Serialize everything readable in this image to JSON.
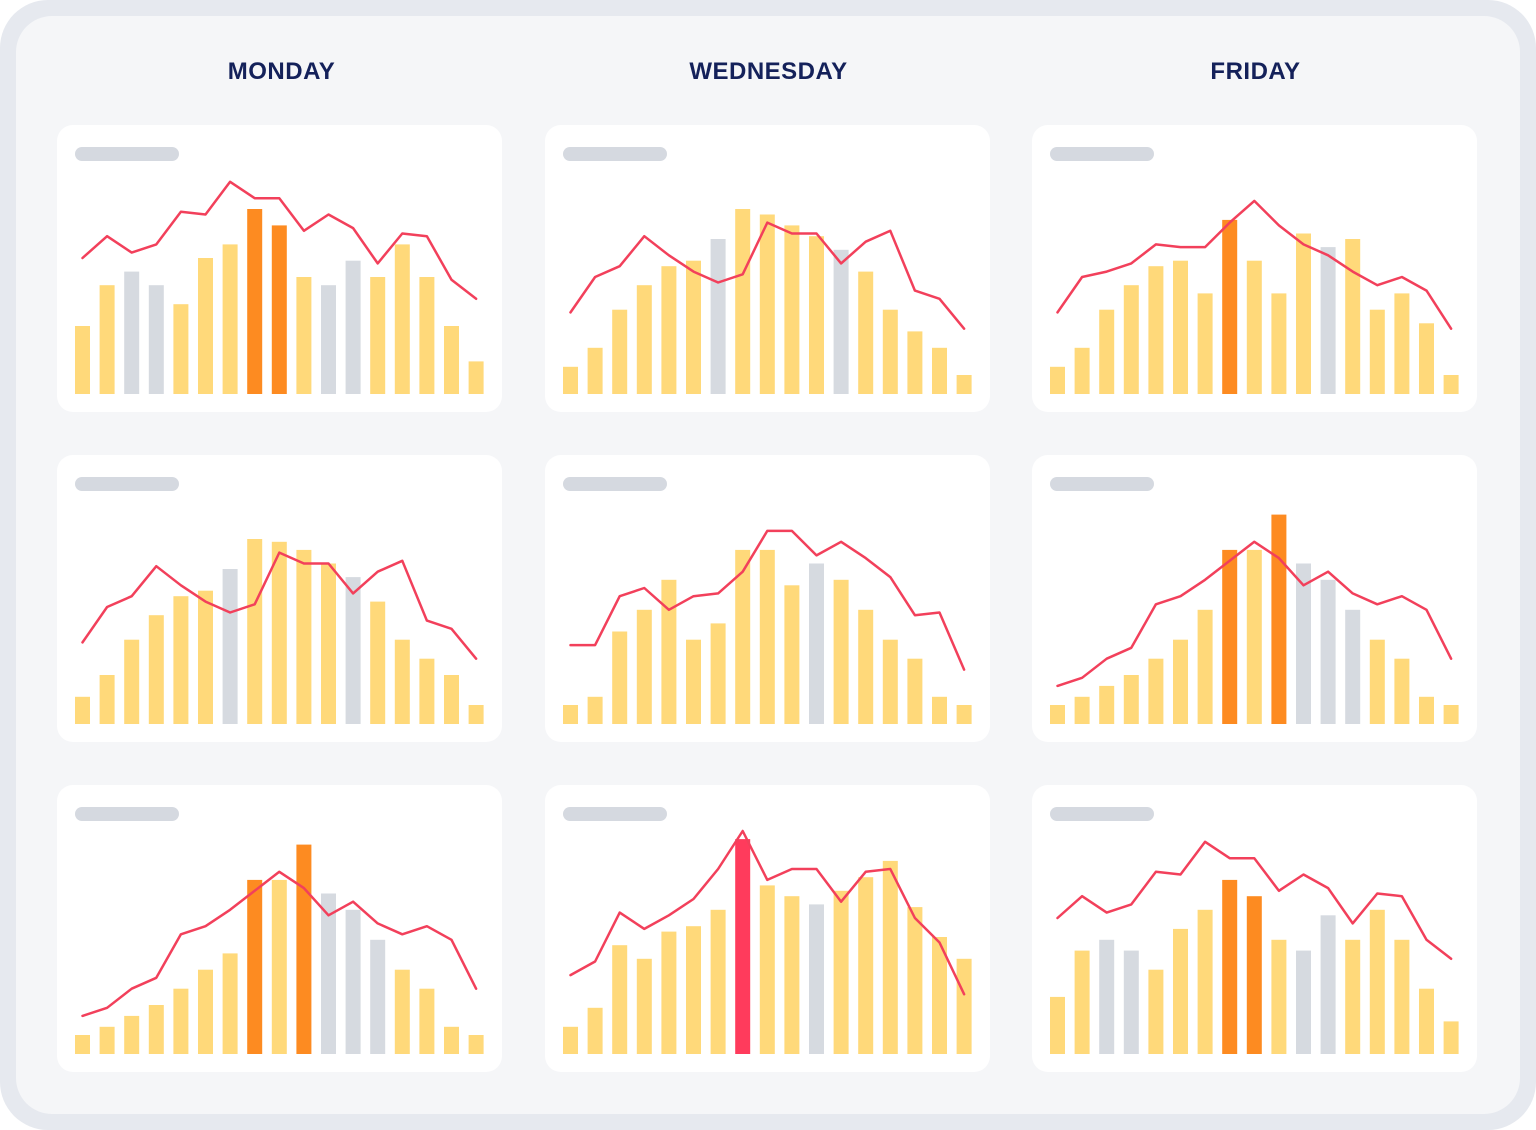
{
  "days": [
    "MONDAY",
    "WEDNESDAY",
    "FRIDAY"
  ],
  "colors": {
    "normal": "#ffd97a",
    "inactive": "#d6dae0",
    "peak": "#fd8b21",
    "alert": "#ff3b5c",
    "line": "#f2405b"
  },
  "chart_data": [
    {
      "type": "bar",
      "day": "MONDAY",
      "row": 1,
      "values": [
        25,
        40,
        45,
        40,
        33,
        50,
        55,
        68,
        62,
        43,
        40,
        49,
        43,
        55,
        43,
        25,
        12
      ],
      "states": [
        "n",
        "n",
        "g",
        "g",
        "n",
        "n",
        "n",
        "p",
        "p",
        "n",
        "g",
        "g",
        "n",
        "n",
        "n",
        "n",
        "n"
      ],
      "line": [
        50,
        58,
        52,
        55,
        67,
        66,
        78,
        72,
        72,
        60,
        66,
        61,
        48,
        59,
        58,
        42,
        35
      ],
      "ylim": [
        0,
        100
      ]
    },
    {
      "type": "bar",
      "day": "WEDNESDAY",
      "row": 1,
      "values": [
        10,
        17,
        31,
        40,
        47,
        49,
        57,
        68,
        66,
        62,
        58,
        53,
        45,
        31,
        23,
        17,
        7
      ],
      "states": [
        "n",
        "n",
        "n",
        "n",
        "n",
        "n",
        "g",
        "n",
        "n",
        "n",
        "n",
        "g",
        "n",
        "n",
        "n",
        "n",
        "n"
      ],
      "line": [
        30,
        43,
        47,
        58,
        51,
        45,
        41,
        44,
        63,
        59,
        59,
        48,
        56,
        60,
        38,
        35,
        24
      ],
      "ylim": [
        0,
        100
      ]
    },
    {
      "type": "bar",
      "day": "FRIDAY",
      "row": 1,
      "values": [
        10,
        17,
        31,
        40,
        47,
        49,
        37,
        64,
        49,
        37,
        59,
        54,
        57,
        31,
        37,
        26,
        7
      ],
      "states": [
        "n",
        "n",
        "n",
        "n",
        "n",
        "n",
        "n",
        "p",
        "n",
        "n",
        "n",
        "g",
        "n",
        "n",
        "n",
        "n",
        "n"
      ],
      "line": [
        30,
        43,
        45,
        48,
        55,
        54,
        54,
        63,
        71,
        62,
        55,
        51,
        45,
        40,
        43,
        38,
        24
      ],
      "ylim": [
        0,
        100
      ]
    },
    {
      "type": "bar",
      "day": "MONDAY",
      "row": 2,
      "values": [
        10,
        18,
        31,
        40,
        47,
        49,
        57,
        68,
        67,
        64,
        59,
        54,
        45,
        31,
        24,
        18,
        7
      ],
      "states": [
        "n",
        "n",
        "n",
        "n",
        "n",
        "n",
        "g",
        "n",
        "n",
        "n",
        "n",
        "g",
        "n",
        "n",
        "n",
        "n",
        "n"
      ],
      "line": [
        30,
        43,
        47,
        58,
        51,
        45,
        41,
        44,
        63,
        59,
        59,
        48,
        56,
        60,
        38,
        35,
        24
      ],
      "ylim": [
        0,
        100
      ]
    },
    {
      "type": "bar",
      "day": "WEDNESDAY",
      "row": 2,
      "values": [
        7,
        10,
        34,
        42,
        53,
        31,
        37,
        64,
        64,
        51,
        59,
        53,
        42,
        31,
        24,
        10,
        7
      ],
      "states": [
        "n",
        "n",
        "n",
        "n",
        "n",
        "n",
        "n",
        "n",
        "n",
        "n",
        "g",
        "n",
        "n",
        "n",
        "n",
        "n",
        "n"
      ],
      "line": [
        29,
        29,
        47,
        50,
        42,
        47,
        48,
        56,
        71,
        71,
        62,
        67,
        61,
        54,
        40,
        41,
        20
      ],
      "ylim": [
        0,
        100
      ]
    },
    {
      "type": "bar",
      "day": "FRIDAY",
      "row": 2,
      "values": [
        7,
        10,
        14,
        18,
        24,
        31,
        42,
        64,
        64,
        77,
        59,
        53,
        42,
        31,
        24,
        10,
        7
      ],
      "states": [
        "n",
        "n",
        "n",
        "n",
        "n",
        "n",
        "n",
        "p",
        "n",
        "p",
        "g",
        "g",
        "g",
        "n",
        "n",
        "n",
        "n"
      ],
      "line": [
        14,
        17,
        24,
        28,
        44,
        47,
        53,
        60,
        67,
        61,
        51,
        56,
        48,
        44,
        47,
        42,
        24
      ],
      "ylim": [
        0,
        100
      ]
    },
    {
      "type": "bar",
      "day": "MONDAY",
      "row": 3,
      "values": [
        7,
        10,
        14,
        18,
        24,
        31,
        37,
        64,
        64,
        77,
        59,
        53,
        42,
        31,
        24,
        10,
        7
      ],
      "states": [
        "n",
        "n",
        "n",
        "n",
        "n",
        "n",
        "n",
        "p",
        "n",
        "p",
        "g",
        "g",
        "g",
        "n",
        "n",
        "n",
        "n"
      ],
      "line": [
        14,
        17,
        24,
        28,
        44,
        47,
        53,
        60,
        67,
        61,
        51,
        56,
        48,
        44,
        47,
        42,
        24
      ],
      "ylim": [
        0,
        100
      ]
    },
    {
      "type": "bar",
      "day": "WEDNESDAY",
      "row": 3,
      "values": [
        10,
        17,
        40,
        35,
        45,
        47,
        53,
        79,
        62,
        58,
        55,
        60,
        65,
        71,
        54,
        43,
        35
      ],
      "states": [
        "n",
        "n",
        "n",
        "n",
        "n",
        "n",
        "n",
        "r",
        "n",
        "n",
        "g",
        "n",
        "n",
        "n",
        "n",
        "n",
        "n"
      ],
      "line": [
        29,
        34,
        52,
        46,
        51,
        57,
        68,
        82,
        64,
        68,
        68,
        56,
        67,
        68,
        50,
        41,
        22
      ],
      "ylim": [
        0,
        100
      ]
    },
    {
      "type": "bar",
      "day": "FRIDAY",
      "row": 3,
      "values": [
        21,
        38,
        42,
        38,
        31,
        46,
        53,
        64,
        58,
        42,
        38,
        51,
        42,
        53,
        42,
        24,
        12
      ],
      "states": [
        "n",
        "n",
        "g",
        "g",
        "n",
        "n",
        "n",
        "p",
        "p",
        "n",
        "g",
        "g",
        "n",
        "n",
        "n",
        "n",
        "n"
      ],
      "line": [
        50,
        58,
        52,
        55,
        67,
        66,
        78,
        72,
        72,
        60,
        66,
        61,
        48,
        59,
        58,
        42,
        35
      ],
      "ylim": [
        0,
        100
      ]
    }
  ]
}
